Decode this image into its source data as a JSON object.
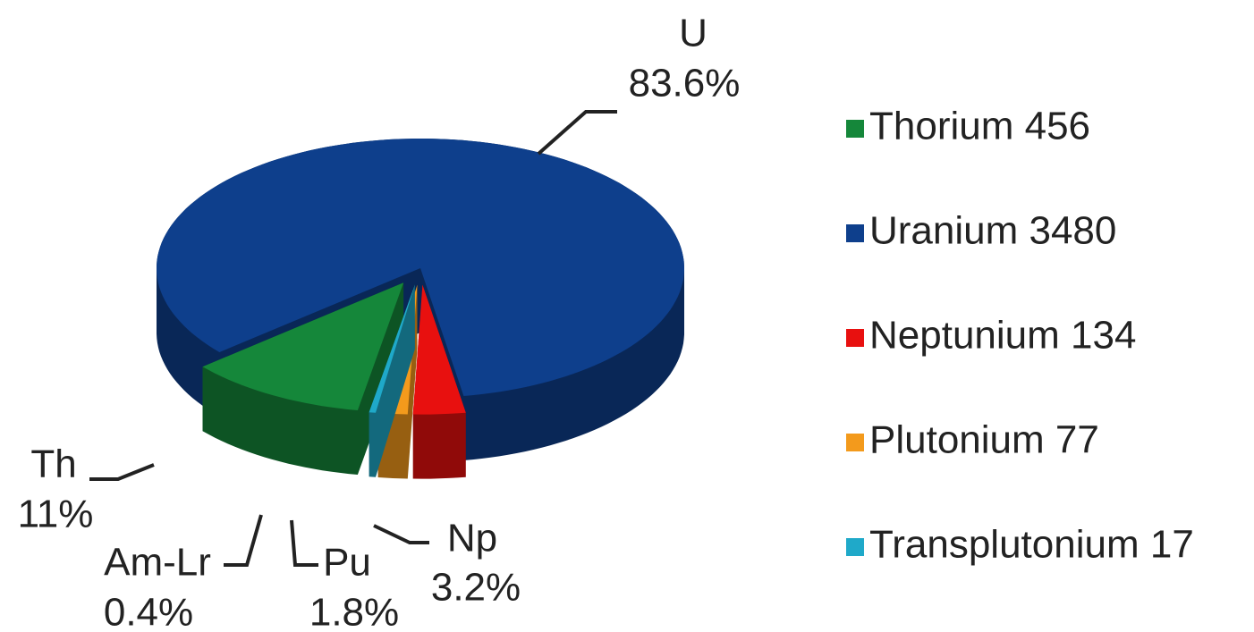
{
  "chart_data": {
    "type": "pie",
    "categories": [
      "Thorium 456",
      "Uranium 3480",
      "Neptunium 134",
      "Plutonium 77",
      "Transplutonium 17"
    ],
    "slice_labels": [
      "Th",
      "U",
      "Np",
      "Pu",
      "Am-Lr"
    ],
    "values": [
      11,
      83.6,
      3.2,
      1.8,
      0.4
    ],
    "value_labels": [
      "11%",
      "83.6%",
      "3.2%",
      "1.8%",
      "0.4%"
    ],
    "colors": [
      "#15873a",
      "#0e3f8c",
      "#e8100f",
      "#f39a1c",
      "#1fa9c9"
    ],
    "legend": "right"
  }
}
